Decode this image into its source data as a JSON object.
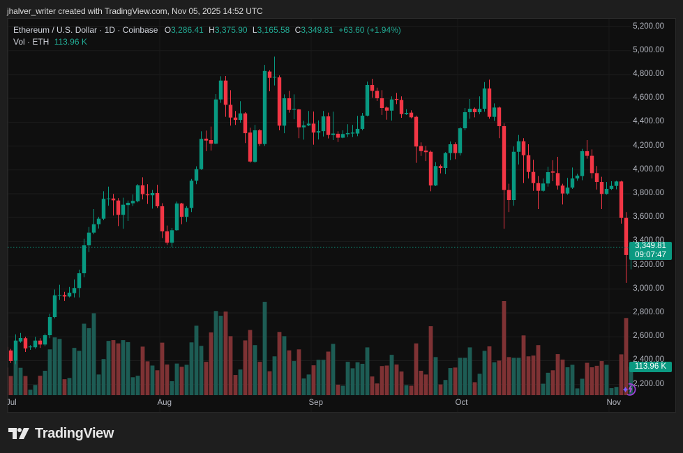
{
  "attribution": "jhalver_writer created with TradingView.com, Nov 05, 2025 14:52 UTC",
  "legend": {
    "symbol": "Ethereum / U.S. Dollar · 1D · Coinbase",
    "o_label": "O",
    "o": "3,286.41",
    "h_label": "H",
    "h": "3,375.90",
    "l_label": "L",
    "l": "3,165.58",
    "c_label": "C",
    "c": "3,349.81",
    "change": "+63.60 (+1.94%)",
    "vol_label": "Vol · ETH",
    "vol": "113.96 K"
  },
  "price_label": {
    "price": "3,349.81",
    "countdown": "09:07:47"
  },
  "volume_label": "113.96 K",
  "brand": {
    "name": "TradingView",
    "logo_icon": "tradingview-logo-icon"
  },
  "colors": {
    "up": "#089981",
    "down": "#f23645",
    "up_volume": "#1d5c54",
    "down_volume": "#7e3234",
    "label_bg": "#0b9981"
  },
  "chart_data": {
    "type": "candlestick",
    "title": "Ethereum / U.S. Dollar · 1D · Coinbase",
    "xlabel": "",
    "ylabel": "",
    "ylim": [
      2100,
      5300
    ],
    "y_ticks": [
      "5,200.00",
      "5,000.00",
      "4,800.00",
      "4,600.00",
      "4,400.00",
      "4,200.00",
      "4,000.00",
      "3,800.00",
      "3,600.00",
      "3,400.00",
      "3,200.00",
      "3,000.00",
      "2,800.00",
      "2,600.00",
      "2,400.00",
      "2,200.00"
    ],
    "x_ticks": [
      {
        "label": "Jul",
        "index": 1
      },
      {
        "label": "Aug",
        "index": 32
      },
      {
        "label": "Sep",
        "index": 63
      },
      {
        "label": "Oct",
        "index": 93
      },
      {
        "label": "Nov",
        "index": 124
      }
    ],
    "grid": true,
    "last_price": 3349.81,
    "columns": [
      "date",
      "open",
      "high",
      "low",
      "close",
      "volume_k"
    ],
    "candles": [
      [
        "Jun 30",
        2515,
        2522,
        2482,
        2485,
        111
      ],
      [
        "Jul 01",
        2485,
        2498,
        2380,
        2397,
        77
      ],
      [
        "Jul 02",
        2398,
        2620,
        2370,
        2568,
        137
      ],
      [
        "Jul 03",
        2560,
        2632,
        2550,
        2590,
        110
      ],
      [
        "Jul 04",
        2588,
        2600,
        2473,
        2502,
        77
      ],
      [
        "Jul 05",
        2512,
        2530,
        2490,
        2518,
        22
      ],
      [
        "Jul 06",
        2512,
        2600,
        2500,
        2568,
        41
      ],
      [
        "Jul 07",
        2568,
        2588,
        2507,
        2535,
        78
      ],
      [
        "Jul 08",
        2535,
        2627,
        2521,
        2613,
        98
      ],
      [
        "Jul 09",
        2613,
        2793,
        2588,
        2765,
        184
      ],
      [
        "Jul 10",
        2765,
        2997,
        2755,
        2948,
        232
      ],
      [
        "Jul 11",
        2945,
        3036,
        2910,
        2950,
        226
      ],
      [
        "Jul 12",
        2950,
        2977,
        2900,
        2938,
        64
      ],
      [
        "Jul 13",
        2938,
        3018,
        2930,
        2970,
        69
      ],
      [
        "Jul 14",
        2966,
        3081,
        2930,
        3009,
        190
      ],
      [
        "Jul 15",
        3009,
        3163,
        2930,
        3133,
        178
      ],
      [
        "Jul 16",
        3133,
        3422,
        3100,
        3367,
        287
      ],
      [
        "Jul 17",
        3367,
        3521,
        3310,
        3474,
        269
      ],
      [
        "Jul 18",
        3474,
        3671,
        3460,
        3544,
        329
      ],
      [
        "Jul 19",
        3544,
        3607,
        3508,
        3591,
        83
      ],
      [
        "Jul 20",
        3591,
        3821,
        3578,
        3757,
        145
      ],
      [
        "Jul 21",
        3757,
        3860,
        3700,
        3760,
        218
      ],
      [
        "Jul 22",
        3760,
        3798,
        3617,
        3745,
        221
      ],
      [
        "Jul 23",
        3743,
        3763,
        3529,
        3623,
        208
      ],
      [
        "Jul 24",
        3623,
        3767,
        3506,
        3708,
        221
      ],
      [
        "Jul 25",
        3705,
        3743,
        3572,
        3724,
        213
      ],
      [
        "Jul 26",
        3720,
        3794,
        3697,
        3740,
        72
      ],
      [
        "Jul 27",
        3737,
        3880,
        3728,
        3870,
        78
      ],
      [
        "Jul 28",
        3870,
        3938,
        3752,
        3796,
        195
      ],
      [
        "Jul 29",
        3795,
        3880,
        3714,
        3787,
        136
      ],
      [
        "Jul 30",
        3787,
        3831,
        3675,
        3806,
        119
      ],
      [
        "Jul 31",
        3806,
        3875,
        3681,
        3695,
        100
      ],
      [
        "Aug 01",
        3695,
        3720,
        3428,
        3484,
        211
      ],
      [
        "Aug 02",
        3484,
        3533,
        3370,
        3389,
        123
      ],
      [
        "Aug 03",
        3389,
        3513,
        3354,
        3494,
        56
      ],
      [
        "Aug 04",
        3494,
        3734,
        3490,
        3718,
        127
      ],
      [
        "Aug 05",
        3718,
        3724,
        3544,
        3607,
        114
      ],
      [
        "Aug 06",
        3607,
        3695,
        3564,
        3681,
        122
      ],
      [
        "Aug 07",
        3681,
        3924,
        3646,
        3909,
        212
      ],
      [
        "Aug 08",
        3909,
        4030,
        3880,
        4006,
        279
      ],
      [
        "Aug 09",
        4006,
        4324,
        4000,
        4260,
        198
      ],
      [
        "Aug 10",
        4262,
        4330,
        4157,
        4246,
        134
      ],
      [
        "Aug 11",
        4250,
        4363,
        4162,
        4220,
        252
      ],
      [
        "Aug 12",
        4220,
        4636,
        4215,
        4591,
        338
      ],
      [
        "Aug 13",
        4591,
        4786,
        4562,
        4749,
        319
      ],
      [
        "Aug 14",
        4749,
        4788,
        4445,
        4546,
        336
      ],
      [
        "Aug 15",
        4546,
        4669,
        4371,
        4439,
        237
      ],
      [
        "Aug 16",
        4439,
        4494,
        4377,
        4419,
        81
      ],
      [
        "Aug 17",
        4419,
        4576,
        4396,
        4474,
        103
      ],
      [
        "Aug 18",
        4474,
        4484,
        4225,
        4308,
        220
      ],
      [
        "Aug 19",
        4313,
        4354,
        4061,
        4070,
        262
      ],
      [
        "Aug 20",
        4068,
        4377,
        4059,
        4332,
        201
      ],
      [
        "Aug 21",
        4332,
        4342,
        4201,
        4217,
        134
      ],
      [
        "Aug 22",
        4217,
        4881,
        4201,
        4830,
        375
      ],
      [
        "Aug 23",
        4825,
        4835,
        4659,
        4772,
        96
      ],
      [
        "Aug 24",
        4775,
        4950,
        4708,
        4780,
        156
      ],
      [
        "Aug 25",
        4776,
        4792,
        4332,
        4371,
        254
      ],
      [
        "Aug 26",
        4371,
        4634,
        4308,
        4601,
        237
      ],
      [
        "Aug 27",
        4601,
        4663,
        4480,
        4503,
        180
      ],
      [
        "Aug 28",
        4505,
        4634,
        4425,
        4512,
        137
      ],
      [
        "Aug 29",
        4507,
        4513,
        4266,
        4357,
        184
      ],
      [
        "Aug 30",
        4357,
        4412,
        4254,
        4373,
        67
      ],
      [
        "Aug 31",
        4373,
        4494,
        4367,
        4388,
        83
      ],
      [
        "Sep 01",
        4388,
        4490,
        4211,
        4313,
        120
      ],
      [
        "Sep 02",
        4313,
        4415,
        4255,
        4325,
        142
      ],
      [
        "Sep 03",
        4325,
        4494,
        4280,
        4449,
        142
      ],
      [
        "Sep 04",
        4449,
        4480,
        4264,
        4293,
        175
      ],
      [
        "Sep 05",
        4293,
        4488,
        4250,
        4305,
        206
      ],
      [
        "Sep 06",
        4303,
        4324,
        4234,
        4270,
        42
      ],
      [
        "Sep 07",
        4270,
        4332,
        4265,
        4301,
        38
      ],
      [
        "Sep 08",
        4299,
        4383,
        4275,
        4309,
        134
      ],
      [
        "Sep 09",
        4305,
        4377,
        4275,
        4313,
        108
      ],
      [
        "Sep 10",
        4305,
        4453,
        4283,
        4344,
        132
      ],
      [
        "Sep 11",
        4344,
        4478,
        4332,
        4455,
        126
      ],
      [
        "Sep 12",
        4455,
        4741,
        4449,
        4712,
        192
      ],
      [
        "Sep 13",
        4712,
        4764,
        4605,
        4663,
        75
      ],
      [
        "Sep 14",
        4663,
        4690,
        4578,
        4601,
        47
      ],
      [
        "Sep 15",
        4601,
        4669,
        4461,
        4519,
        117
      ],
      [
        "Sep 16",
        4523,
        4532,
        4421,
        4497,
        119
      ],
      [
        "Sep 17",
        4497,
        4617,
        4414,
        4591,
        162
      ],
      [
        "Sep 18",
        4595,
        4646,
        4552,
        4587,
        123
      ],
      [
        "Sep 19",
        4587,
        4617,
        4437,
        4468,
        95
      ],
      [
        "Sep 20",
        4468,
        4509,
        4461,
        4478,
        40
      ],
      [
        "Sep 21",
        4480,
        4500,
        4433,
        4441,
        38
      ],
      [
        "Sep 22",
        4445,
        4455,
        4059,
        4196,
        208
      ],
      [
        "Sep 23",
        4200,
        4231,
        4117,
        4158,
        98
      ],
      [
        "Sep 24",
        4162,
        4201,
        4074,
        4149,
        83
      ],
      [
        "Sep 25",
        4152,
        4162,
        3821,
        3869,
        277
      ],
      [
        "Sep 26",
        3869,
        4065,
        3864,
        4032,
        153
      ],
      [
        "Sep 27",
        4032,
        4045,
        3971,
        4016,
        43
      ],
      [
        "Sep 28",
        4016,
        4149,
        3964,
        4141,
        61
      ],
      [
        "Sep 29",
        4141,
        4238,
        4082,
        4215,
        109
      ],
      [
        "Sep 30",
        4215,
        4231,
        4090,
        4141,
        111
      ],
      [
        "Oct 01",
        4141,
        4359,
        4121,
        4349,
        150
      ],
      [
        "Oct 02",
        4349,
        4519,
        4332,
        4484,
        150
      ],
      [
        "Oct 03",
        4484,
        4595,
        4429,
        4513,
        192
      ],
      [
        "Oct 04",
        4513,
        4523,
        4441,
        4484,
        52
      ],
      [
        "Oct 05",
        4484,
        4617,
        4468,
        4513,
        86
      ],
      [
        "Oct 06",
        4513,
        4737,
        4488,
        4683,
        178
      ],
      [
        "Oct 07",
        4683,
        4757,
        4429,
        4445,
        196
      ],
      [
        "Oct 08",
        4445,
        4558,
        4410,
        4523,
        132
      ],
      [
        "Oct 09",
        4523,
        4531,
        4266,
        4367,
        139
      ],
      [
        "Oct 10",
        4367,
        4390,
        3506,
        3831,
        378
      ],
      [
        "Oct 11",
        3831,
        3884,
        3646,
        3747,
        153
      ],
      [
        "Oct 12",
        3747,
        4197,
        3700,
        4152,
        150
      ],
      [
        "Oct 13",
        4152,
        4293,
        4045,
        4240,
        150
      ],
      [
        "Oct 14",
        4240,
        4266,
        3889,
        4123,
        240
      ],
      [
        "Oct 15",
        4123,
        4215,
        3928,
        3983,
        156
      ],
      [
        "Oct 16",
        3983,
        4085,
        3825,
        3889,
        159
      ],
      [
        "Oct 17",
        3889,
        3948,
        3671,
        3825,
        201
      ],
      [
        "Oct 18",
        3825,
        3928,
        3817,
        3886,
        46
      ],
      [
        "Oct 19",
        3886,
        4026,
        3860,
        3981,
        90
      ],
      [
        "Oct 20",
        3987,
        4081,
        3905,
        3977,
        100
      ],
      [
        "Oct 21",
        3973,
        4110,
        3835,
        3868,
        165
      ],
      [
        "Oct 22",
        3868,
        3884,
        3710,
        3802,
        143
      ],
      [
        "Oct 23",
        3802,
        3933,
        3792,
        3851,
        112
      ],
      [
        "Oct 24",
        3851,
        4020,
        3841,
        3928,
        122
      ],
      [
        "Oct 25",
        3928,
        3967,
        3909,
        3952,
        27
      ],
      [
        "Oct 26",
        3948,
        4176,
        3913,
        4157,
        66
      ],
      [
        "Oct 27",
        4157,
        4250,
        4094,
        4118,
        130
      ],
      [
        "Oct 28",
        4118,
        4172,
        3928,
        3973,
        112
      ],
      [
        "Oct 29",
        3973,
        4032,
        3835,
        3899,
        118
      ],
      [
        "Oct 30",
        3899,
        3942,
        3671,
        3798,
        137
      ],
      [
        "Oct 31",
        3798,
        3899,
        3792,
        3841,
        122
      ],
      [
        "Nov 01",
        3841,
        3905,
        3831,
        3866,
        28
      ],
      [
        "Nov 02",
        3866,
        3909,
        3837,
        3903,
        33
      ],
      [
        "Nov 03",
        3903,
        3909,
        3549,
        3597,
        164
      ],
      [
        "Nov 04",
        3597,
        3646,
        3052,
        3286,
        310
      ],
      [
        "Nov 05",
        3286.41,
        3375.9,
        3165.58,
        3349.81,
        113.96
      ]
    ]
  }
}
